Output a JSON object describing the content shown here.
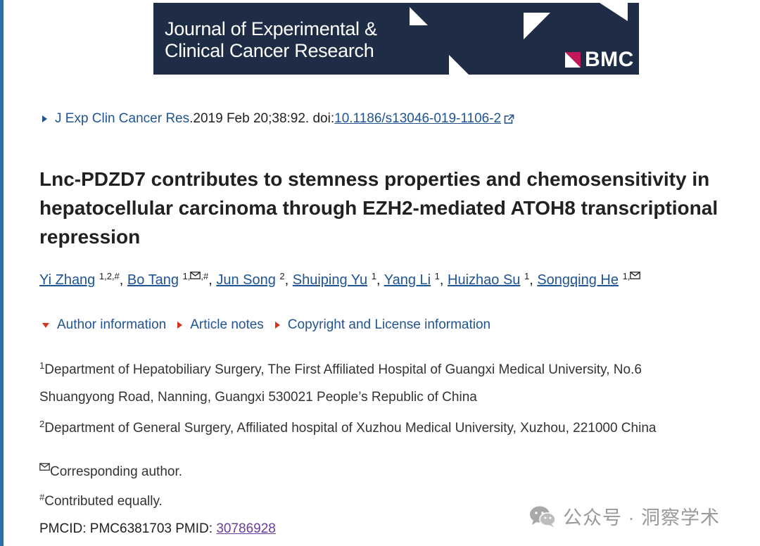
{
  "banner": {
    "line1": "Journal of Experimental &",
    "line2": "Clinical Cancer Research",
    "publisher": "BMC"
  },
  "citation": {
    "journal": "J Exp Clin Cancer Res",
    "sep": ". ",
    "details": "2019 Feb 20;38:92. doi: ",
    "doi": "10.1186/s13046-019-1106-2"
  },
  "title": "Lnc-PDZD7 contributes to stemness properties and chemosensitivity in hepatocellular carcinoma through EZH2-mediated ATOH8 transcriptional repression",
  "authors": [
    {
      "name": "Yi Zhang",
      "sup": "1,2,#"
    },
    {
      "name": "Bo Tang",
      "sup_pre": "1,",
      "sup_post": ",#",
      "mail": true
    },
    {
      "name": "Jun Song",
      "sup": "2"
    },
    {
      "name": "Shuiping Yu",
      "sup": "1"
    },
    {
      "name": "Yang Li",
      "sup": "1"
    },
    {
      "name": "Huizhao Su",
      "sup": "1"
    },
    {
      "name": "Songqing He",
      "sup_pre": "1,",
      "mail": true
    }
  ],
  "toggles": {
    "author_info": "Author information",
    "article_notes": "Article notes",
    "copyright": "Copyright and License information"
  },
  "affiliations": {
    "a1_num": "1",
    "a1_line1": "Department of Hepatobiliary Surgery, The First Affiliated Hospital of Guangxi Medical University, No.6",
    "a1_line2": "Shuangyong Road, Nanning, Guangxi 530021 People’s Republic of China",
    "a2_num": "2",
    "a2_line1": "Department of General Surgery, Affiliated hospital of Xuzhou Medical University, Xuzhou, 221000 China"
  },
  "notes": {
    "corresponding": "Corresponding author.",
    "equal_mark": "#",
    "equal": "Contributed equally."
  },
  "ids": {
    "pmcid": "PMCID: PMC6381703  PMID: ",
    "pmid": "30786928"
  },
  "watermark": {
    "text": "公众号 · 洞察学术"
  },
  "colors": {
    "banner_bg": "#1e2d45",
    "link": "#205493",
    "visited_link": "#6c3c9c",
    "caret": "#d4351c",
    "left_rule": "#2f6fa6"
  }
}
